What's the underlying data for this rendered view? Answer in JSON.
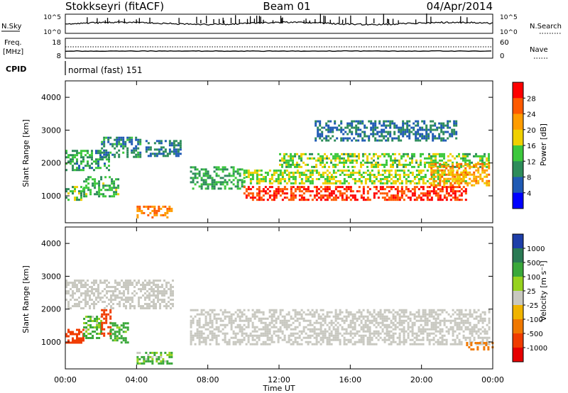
{
  "header": {
    "station": "Stokkseyri (fitACF)",
    "beam": "Beam 01",
    "date": "04/Apr/2014"
  },
  "panels": {
    "nsky": {
      "left_label": "N.Sky",
      "right_label": "N.Search",
      "left_ticks": [
        "10^5",
        "10^0"
      ],
      "right_ticks": [
        "10^5",
        "10^0"
      ]
    },
    "freq": {
      "left_label_1": "Freq.",
      "left_label_2": "[MHz]",
      "right_label": "Nave",
      "left_ticks": [
        "18",
        "8"
      ],
      "right_ticks": [
        "60",
        "0"
      ]
    },
    "cpid": {
      "label": "CPID",
      "mode_text": "normal (fast) 151"
    }
  },
  "power_colorbar": {
    "label": "Power [dB]",
    "ticks": [
      "28",
      "24",
      "20",
      "16",
      "12",
      "8",
      "4"
    ],
    "colors": [
      "#ff0000",
      "#ff5a00",
      "#ff9c00",
      "#f0d000",
      "#3cc83c",
      "#2d8c5a",
      "#1f5ab4",
      "#0000ff"
    ]
  },
  "velocity_colorbar": {
    "label": "Velocity [m s⁻¹]",
    "ticks": [
      "1000",
      "500",
      "100",
      "25",
      "-25",
      "-100",
      "-500",
      "-1000"
    ],
    "colors": [
      "#1d3ea8",
      "#2a7a54",
      "#3aa83a",
      "#96d21e",
      "#c8c8c0",
      "#f0b400",
      "#f07800",
      "#f03c00",
      "#e60000"
    ]
  },
  "time_axis": {
    "label": "Time UT",
    "ticks": [
      "00:00",
      "04:00",
      "08:00",
      "12:00",
      "16:00",
      "20:00",
      "00:00"
    ]
  },
  "chart_data": [
    {
      "type": "heatmap",
      "title": "",
      "xlabel": "",
      "ylabel": "Slant Range [km]",
      "xlim": [
        0,
        24
      ],
      "ylim": [
        180,
        4500
      ],
      "yticks": [
        "4000",
        "3000",
        "2000",
        "1000"
      ],
      "colorbar": "Power [dB]",
      "echo_regions": [
        {
          "t0": 0.0,
          "t1": 2.5,
          "r0": 1800,
          "r1": 2400,
          "value": 9
        },
        {
          "t0": 0.0,
          "t1": 1.0,
          "r0": 900,
          "r1": 1300,
          "value": 12
        },
        {
          "t0": 1.0,
          "t1": 3.0,
          "r0": 1000,
          "r1": 1600,
          "value": 11
        },
        {
          "t0": 2.0,
          "t1": 4.2,
          "r0": 2200,
          "r1": 2800,
          "value": 7
        },
        {
          "t0": 4.5,
          "t1": 6.5,
          "r0": 2200,
          "r1": 2700,
          "value": 6
        },
        {
          "t0": 4.0,
          "t1": 6.0,
          "r0": 350,
          "r1": 700,
          "value": 22
        },
        {
          "t0": 7.0,
          "t1": 10.0,
          "r0": 1200,
          "r1": 1900,
          "value": 10
        },
        {
          "t0": 10.0,
          "t1": 22.5,
          "r0": 900,
          "r1": 1300,
          "value": 26
        },
        {
          "t0": 10.0,
          "t1": 22.5,
          "r0": 1400,
          "r1": 1800,
          "value": 14
        },
        {
          "t0": 12.0,
          "t1": 23.8,
          "r0": 1900,
          "r1": 2300,
          "value": 13
        },
        {
          "t0": 20.5,
          "t1": 23.8,
          "r0": 1300,
          "r1": 2000,
          "value": 20
        },
        {
          "t0": 14.0,
          "t1": 22.0,
          "r0": 2700,
          "r1": 3300,
          "value": 6
        }
      ]
    },
    {
      "type": "heatmap",
      "title": "",
      "xlabel": "Time UT",
      "ylabel": "Slant Range [km]",
      "xlim": [
        0,
        24
      ],
      "ylim": [
        180,
        4500
      ],
      "yticks": [
        "4000",
        "3000",
        "2000",
        "1000"
      ],
      "colorbar": "Velocity [m s⁻¹]",
      "echo_regions": [
        {
          "t0": 0.0,
          "t1": 1.0,
          "r0": 1000,
          "r1": 1400,
          "value": -800
        },
        {
          "t0": 1.0,
          "t1": 2.0,
          "r0": 1100,
          "r1": 1800,
          "value": 150
        },
        {
          "t0": 2.0,
          "t1": 2.5,
          "r0": 1200,
          "r1": 2000,
          "value": -700
        },
        {
          "t0": 2.5,
          "t1": 3.5,
          "r0": 1000,
          "r1": 1600,
          "value": 200
        },
        {
          "t0": 0.0,
          "t1": 6.0,
          "r0": 2000,
          "r1": 2900,
          "value": 0
        },
        {
          "t0": 4.0,
          "t1": 6.0,
          "r0": 350,
          "r1": 700,
          "value": 150
        },
        {
          "t0": 7.0,
          "t1": 23.8,
          "r0": 900,
          "r1": 2000,
          "value": 0
        },
        {
          "t0": 22.5,
          "t1": 24.0,
          "r0": 800,
          "r1": 1000,
          "value": -300
        }
      ]
    }
  ]
}
